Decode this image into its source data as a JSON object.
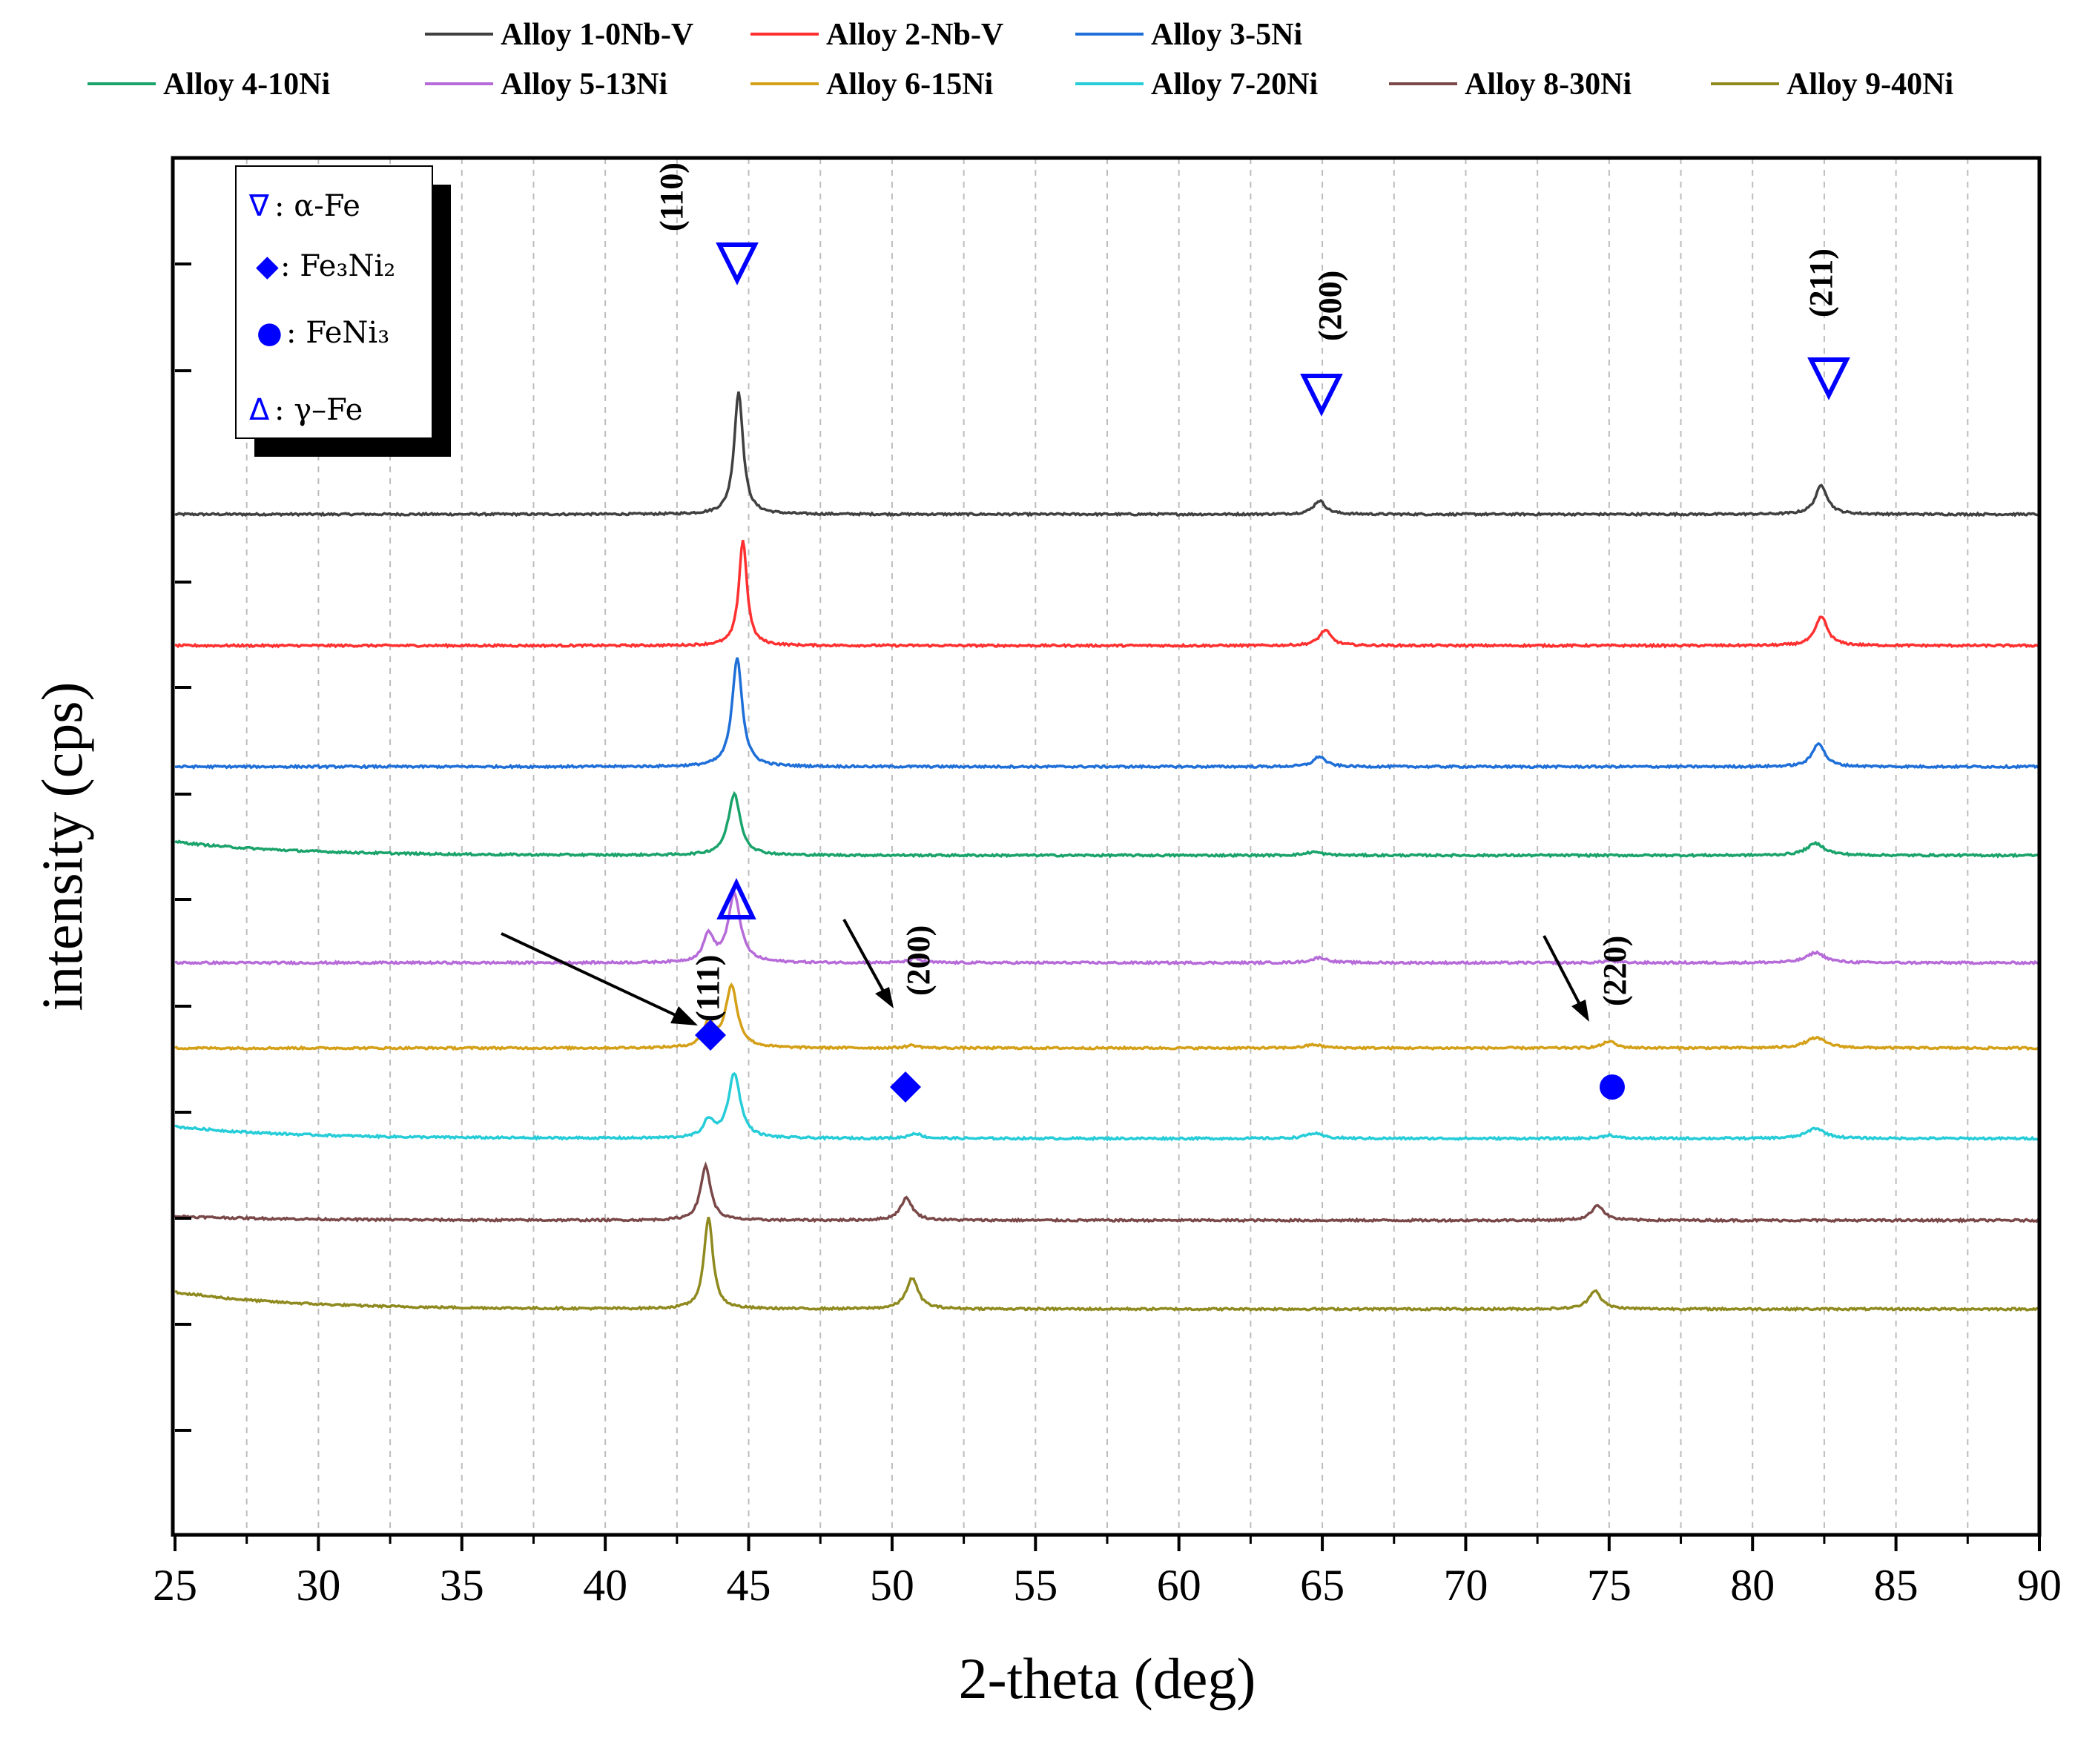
{
  "chart_data": {
    "type": "line",
    "xlabel": "2-theta (deg)",
    "ylabel": "intensity (cps)",
    "xlim": [
      25,
      90
    ],
    "xticks": [
      "25",
      "30",
      "35",
      "40",
      "45",
      "50",
      "55",
      "60",
      "65",
      "70",
      "75",
      "80",
      "85",
      "90"
    ],
    "grid": "vertical dashed",
    "legend_position": "top",
    "series": [
      {
        "name": "Alloy 1-0Nb-V",
        "color": "#404040",
        "baseline": 0.84,
        "slope": 0,
        "peaks": [
          [
            44.65,
            0.36,
            0.22
          ],
          [
            64.9,
            0.04,
            0.3
          ],
          [
            82.4,
            0.085,
            0.3
          ]
        ]
      },
      {
        "name": "Alloy 2-Nb-V",
        "color": "#ff3030",
        "baseline": 0.455,
        "slope": 0,
        "peaks": [
          [
            44.8,
            0.31,
            0.2
          ],
          [
            65.1,
            0.045,
            0.3
          ],
          [
            82.4,
            0.085,
            0.3
          ]
        ]
      },
      {
        "name": "Alloy 3-5Ni",
        "color": "#1f6fd8",
        "baseline": 0.1,
        "slope": 0,
        "peaks": [
          [
            44.6,
            0.32,
            0.25
          ],
          [
            64.9,
            0.03,
            0.3
          ],
          [
            82.3,
            0.07,
            0.3
          ]
        ]
      },
      {
        "name": "Alloy 4-10Ni",
        "color": "#1aa36a",
        "baseline": -0.16,
        "slope": 0.04,
        "peaks": [
          [
            44.5,
            0.18,
            0.3
          ],
          [
            64.7,
            0.01,
            0.4
          ],
          [
            82.2,
            0.035,
            0.45
          ]
        ]
      },
      {
        "name": "Alloy 5-13Ni",
        "color": "#b66bd9",
        "baseline": -0.475,
        "slope": 0,
        "peaks": [
          [
            43.6,
            0.08,
            0.25
          ],
          [
            44.5,
            0.2,
            0.3
          ],
          [
            50.8,
            0.012,
            0.3
          ],
          [
            64.9,
            0.015,
            0.4
          ],
          [
            75.0,
            0.006,
            0.3
          ],
          [
            82.2,
            0.03,
            0.45
          ]
        ]
      },
      {
        "name": "Alloy 6-15Ni",
        "color": "#d4a017",
        "baseline": -0.725,
        "slope": 0,
        "peaks": [
          [
            43.6,
            0.07,
            0.25
          ],
          [
            44.4,
            0.18,
            0.3
          ],
          [
            50.7,
            0.008,
            0.3
          ],
          [
            64.7,
            0.01,
            0.4
          ],
          [
            75.0,
            0.02,
            0.3
          ],
          [
            82.2,
            0.03,
            0.5
          ]
        ]
      },
      {
        "name": "Alloy 7-20Ni",
        "color": "#26cdd8",
        "baseline": -0.99,
        "slope": 0.035,
        "peaks": [
          [
            43.6,
            0.05,
            0.25
          ],
          [
            44.5,
            0.19,
            0.3
          ],
          [
            50.8,
            0.015,
            0.3
          ],
          [
            64.7,
            0.015,
            0.4
          ],
          [
            75.0,
            0.01,
            0.3
          ],
          [
            82.2,
            0.03,
            0.45
          ]
        ]
      },
      {
        "name": "Alloy 8-30Ni",
        "color": "#7a4848",
        "baseline": -1.23,
        "slope": 0.012,
        "peaks": [
          [
            43.5,
            0.16,
            0.25
          ],
          [
            50.5,
            0.065,
            0.3
          ],
          [
            74.6,
            0.045,
            0.3
          ]
        ]
      },
      {
        "name": "Alloy 9-40Ni",
        "color": "#8f8a1f",
        "baseline": -1.49,
        "slope": 0.05,
        "peaks": [
          [
            43.6,
            0.27,
            0.22
          ],
          [
            50.7,
            0.09,
            0.3
          ],
          [
            74.5,
            0.055,
            0.3
          ]
        ]
      }
    ],
    "annotations": {
      "alpha_hkl": [
        {
          "label": "(110)",
          "x": 42.2
        },
        {
          "label": "(200)",
          "x": 65.4
        },
        {
          "label": "(211)",
          "x": 82.5
        }
      ],
      "gamma_hkl": [
        {
          "label": "(111)",
          "x": 43.1
        },
        {
          "label": "(200)",
          "x": 51.0
        },
        {
          "label": "(220)",
          "x": 75.3
        }
      ],
      "phase_key": [
        {
          "symbol": "∇",
          "label": ": α-Fe"
        },
        {
          "symbol": "◆",
          "label": ": Fe₃Ni₂"
        },
        {
          "symbol": "●",
          "label": ":  FeNi₃"
        },
        {
          "symbol": "Δ",
          "label": ": γ–Fe"
        }
      ]
    }
  }
}
